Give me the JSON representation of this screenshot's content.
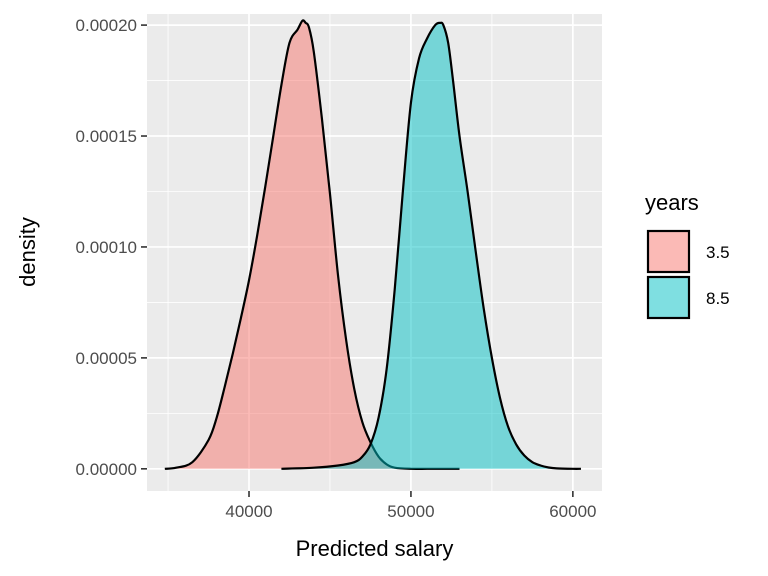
{
  "chart_data": {
    "type": "area",
    "subtype": "density",
    "title": "",
    "xlabel": "Predicted salary",
    "ylabel": "density",
    "xlim": [
      33700,
      61800
    ],
    "ylim": [
      -1e-05,
      0.000205
    ],
    "x_ticks": [
      40000,
      50000,
      60000
    ],
    "x_tick_labels": [
      "40000",
      "50000",
      "60000"
    ],
    "y_ticks": [
      0,
      5e-05,
      0.0001,
      0.00015,
      0.0002
    ],
    "y_tick_labels": [
      "0.00000",
      "0.00005",
      "0.00010",
      "0.00015",
      "0.00020"
    ],
    "grid": true,
    "legend": {
      "title": "years",
      "position": "right"
    },
    "series": [
      {
        "name": "3.5",
        "color": "#F8766D",
        "x": [
          34800,
          35500,
          36500,
          37500,
          38000,
          38500,
          39000,
          39500,
          40000,
          40500,
          41000,
          41500,
          42000,
          42500,
          43000,
          43300,
          43500,
          43700,
          44000,
          44500,
          45000,
          45500,
          46000,
          46500,
          47000,
          47500,
          48000,
          48500,
          49000,
          50000,
          51000,
          52000,
          53000
        ],
        "y": [
          0.0,
          5e-07,
          3e-06,
          1.3e-05,
          2.3e-05,
          3.7e-05,
          5.2e-05,
          6.8e-05,
          8.5e-05,
          0.000105,
          0.000127,
          0.00015,
          0.000173,
          0.000192,
          0.000198,
          0.000202,
          0.000201,
          0.000199,
          0.000188,
          0.000158,
          0.000124,
          8.7e-05,
          5.8e-05,
          3.6e-05,
          2.1e-05,
          1.2e-05,
          5.5e-06,
          2e-06,
          5e-07,
          0.0,
          0.0,
          0.0,
          0.0
        ]
      },
      {
        "name": "8.5",
        "color": "#00BFC4",
        "x": [
          42000,
          44000,
          45500,
          46500,
          47000,
          47500,
          48000,
          48500,
          49000,
          49500,
          50000,
          50500,
          51000,
          51500,
          51800,
          52000,
          52300,
          52600,
          53000,
          53500,
          54000,
          54500,
          55000,
          55500,
          56000,
          56500,
          57000,
          57500,
          58000,
          58500,
          59000,
          60000,
          60500
        ],
        "y": [
          0.0,
          5e-07,
          1.5e-06,
          3e-06,
          5.5e-06,
          1.1e-05,
          2.3e-05,
          4.5e-05,
          8.1e-05,
          0.000125,
          0.000165,
          0.000185,
          0.000194,
          0.0002,
          0.000201,
          0.0002,
          0.000192,
          0.000175,
          0.00015,
          0.000125,
          9.8e-05,
          7.2e-05,
          5e-05,
          3.2e-05,
          1.9e-05,
          1.1e-05,
          6e-06,
          3e-06,
          1.5e-06,
          6e-07,
          2e-07,
          0.0,
          0.0
        ]
      }
    ]
  }
}
